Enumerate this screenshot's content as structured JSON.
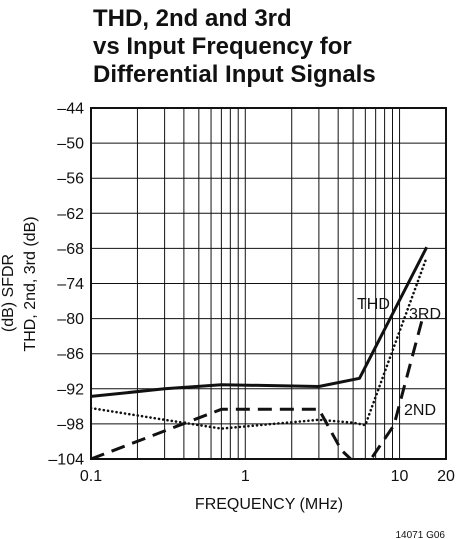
{
  "chart_data": {
    "type": "line",
    "title_lines": [
      "THD, 2nd and 3rd",
      "vs Input Frequency for",
      "Differential Input Signals"
    ],
    "xlabel": "FREQUENCY (MHz)",
    "ylabel": "THD, 2nd, 3rd (dB)",
    "ylabel_clipped": "(dB) SFDR",
    "x_scale": "log",
    "xlim": [
      0.1,
      20
    ],
    "ylim": [
      -104,
      -44
    ],
    "x_tick_labels": [
      {
        "value": 0.1,
        "label": "0.1"
      },
      {
        "value": 1,
        "label": "1"
      },
      {
        "value": 10,
        "label": "10"
      },
      {
        "value": 20,
        "label": "20"
      }
    ],
    "y_ticks": [
      -44,
      -50,
      -56,
      -62,
      -68,
      -74,
      -80,
      -86,
      -92,
      -98,
      -104
    ],
    "y_tick_labels": [
      "–44",
      "–50",
      "–56",
      "–62",
      "–68",
      "–74",
      "–80",
      "–86",
      "–92",
      "–98",
      "–104"
    ],
    "grid": true,
    "series": [
      {
        "name": "THD",
        "style": "solid",
        "x": [
          0.1,
          0.3,
          0.7,
          3,
          5.5,
          15
        ],
        "y": [
          -93.3,
          -92.0,
          -91.3,
          -91.6,
          -90.2,
          -67.8
        ]
      },
      {
        "name": "3RD",
        "style": "dotted",
        "x": [
          0.1,
          0.3,
          0.7,
          3,
          5,
          6,
          15
        ],
        "y": [
          -95.3,
          -97.3,
          -98.8,
          -97.3,
          -97.8,
          -98.2,
          -69.5
        ]
      },
      {
        "name": "2ND",
        "style": "dashed",
        "x": [
          0.1,
          0.7,
          3,
          4.2,
          5.8,
          9.2,
          14
        ],
        "y": [
          -104,
          -95.5,
          -95.5,
          -102.5,
          -106,
          -98.2,
          -80.2
        ]
      }
    ],
    "annotations": [
      "THD",
      "3RD",
      "2ND"
    ],
    "figure_id": "14071 G06"
  }
}
